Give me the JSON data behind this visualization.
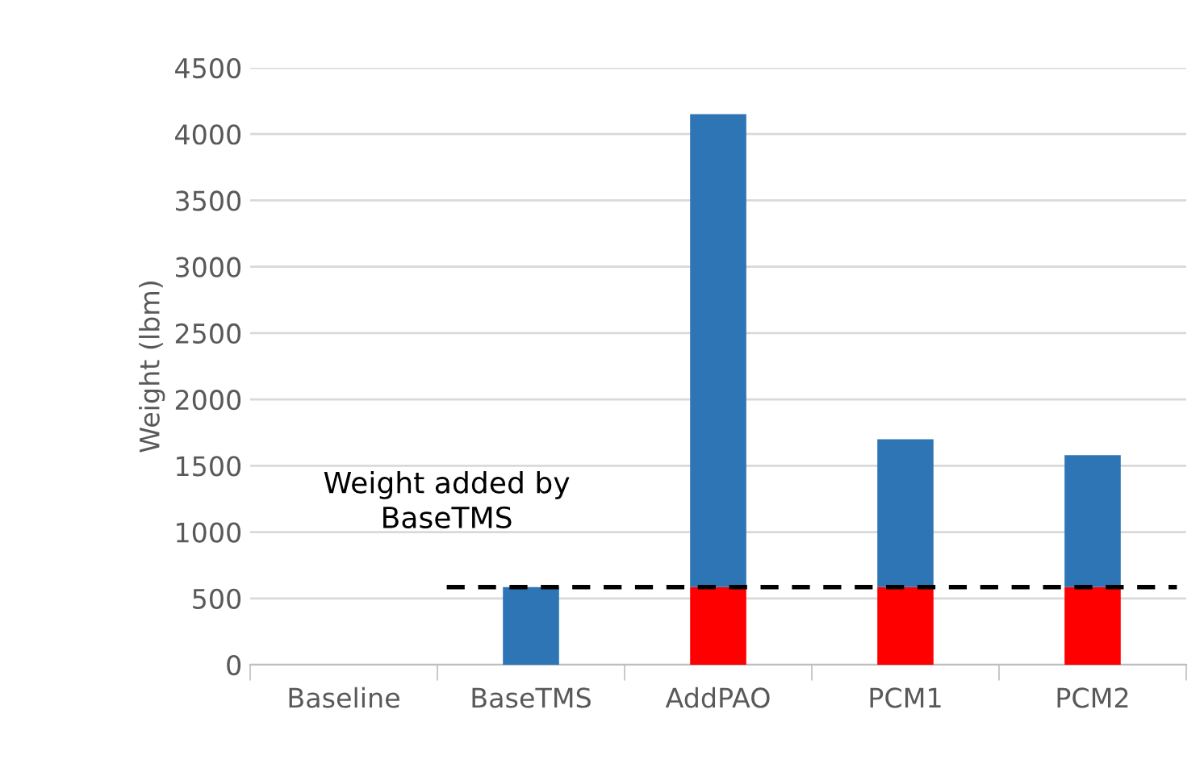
{
  "chart_data": {
    "type": "bar",
    "stacked": true,
    "ylabel": "Weight (lbm)",
    "categories": [
      "Baseline",
      "BaseTMS",
      "AddPAO",
      "PCM1",
      "PCM2"
    ],
    "series": [
      {
        "color": "#ff0000",
        "values": [
          null,
          null,
          585,
          585,
          585
        ]
      },
      {
        "color": "#2e75b6",
        "values": [
          null,
          585,
          3565,
          1115,
          995
        ]
      }
    ],
    "ylim": [
      0,
      4500
    ],
    "yticks": [
      0,
      500,
      1000,
      1500,
      2000,
      2500,
      3000,
      3500,
      4000,
      4500
    ],
    "grid": "y",
    "legend": false,
    "ref_lines": [
      {
        "axis": "y",
        "value": 585,
        "label": "Weight added by\nBaseTMS",
        "color": "#000000",
        "line_style": "dashed"
      }
    ]
  }
}
